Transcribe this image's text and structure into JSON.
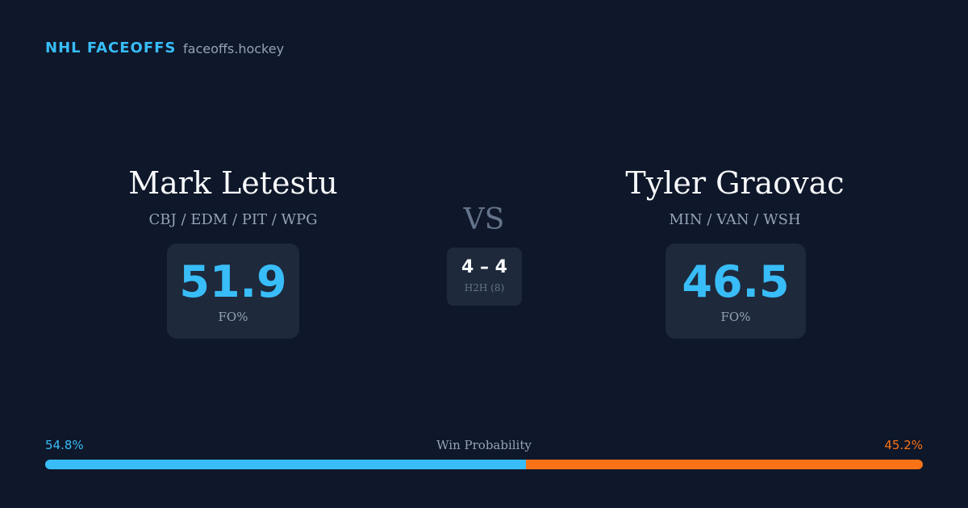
{
  "header": {
    "title": "NHL FACEOFFS",
    "site": "faceoffs.hockey"
  },
  "players": [
    {
      "name": "Mark Letestu",
      "teams": "CBJ / EDM / PIT / WPG",
      "fo_pct": 51.9,
      "fo_label": "FO%"
    },
    {
      "name": "Tyler Graovac",
      "teams": "MIN / VAN / WSH",
      "fo_pct": 46.5,
      "fo_label": "FO%"
    }
  ],
  "versus": {
    "label": "VS",
    "record": "4 – 4",
    "record_label": "H2H (8)"
  },
  "win_probability": {
    "title": "Win Probability",
    "left": {
      "value": 54.8,
      "label": "54.8%",
      "color": "#38bdf8"
    },
    "right": {
      "value": 45.2,
      "label": "45.2%",
      "color": "#f97316"
    }
  }
}
